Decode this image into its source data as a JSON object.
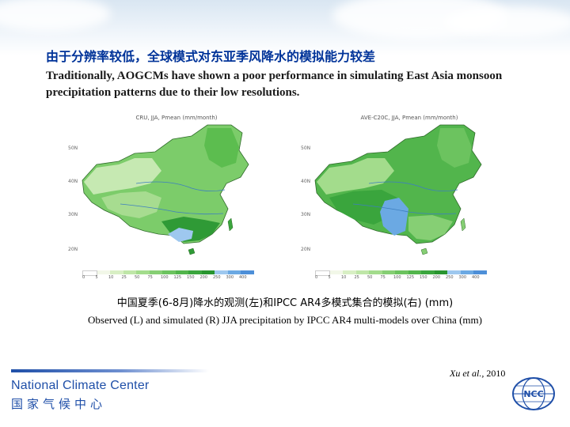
{
  "slide": {
    "title_cn": "由于分辨率较低，全球模式对东亚季风降水的模拟能力较差",
    "title_en": "Traditionally, AOGCMs have shown a poor performance in simulating East Asia monsoon precipitation patterns due to their low resolutions.",
    "left_panel_title": "CRU, JJA, Pmean (mm/month)",
    "right_panel_title": "AVE-C20C, JJA, Pmean (mm/month)",
    "lat_labels": [
      "50N",
      "40N",
      "30N",
      "20N"
    ],
    "colorbar_labels": [
      "0",
      "5",
      "10",
      "25",
      "50",
      "75",
      "100",
      "125",
      "150",
      "200",
      "250",
      "300",
      "400"
    ],
    "caption_cn": "中国夏季(6-8月)降水的观测(左)和IPCC AR4多模式集合的模拟(右) (mm)",
    "caption_en": "Observed (L) and simulated (R) JJA precipitation by IPCC AR4 multi-models over China (mm)",
    "citation_author": "Xu et al.,",
    "citation_year": "2010",
    "footer_en": "National Climate Center",
    "footer_cn": "国家气候中心",
    "logo_text": "NCC"
  },
  "colors": {
    "title_cn": "#003399",
    "footer": "#1f4fa8",
    "colorbar": [
      "#ffffff",
      "#f2f7e8",
      "#d8efc4",
      "#bfe6a8",
      "#a3dc8c",
      "#86cf74",
      "#6cc35f",
      "#52b54c",
      "#3aa53d",
      "#28952f",
      "#9ec8ef",
      "#6ba9e3",
      "#4d8fd8"
    ]
  }
}
